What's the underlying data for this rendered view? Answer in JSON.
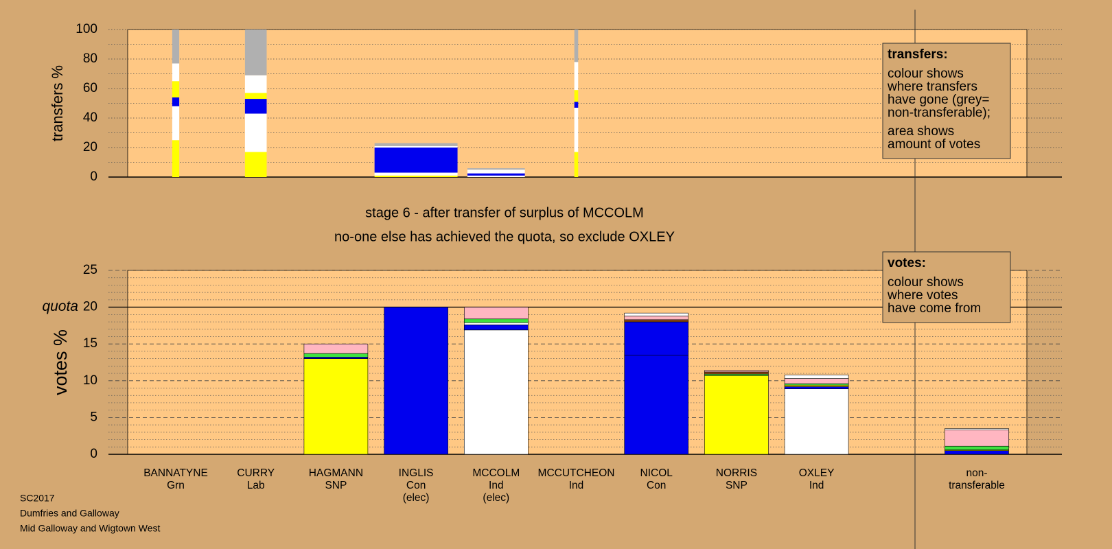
{
  "chart_data": [
    {
      "type": "bar",
      "stacked": true,
      "ylabel": "transfers %",
      "ylim": [
        0,
        100
      ],
      "yticks": [
        0,
        20,
        40,
        60,
        80,
        100
      ],
      "minor_yticks": [
        10,
        30,
        50,
        70,
        90
      ],
      "widths": [
        0.11,
        0.34,
        0,
        1.3,
        0.9,
        0.06,
        0,
        0,
        0,
        0,
        0
      ],
      "series": [
        {
          "color": "#ffff00",
          "values": [
            25,
            17,
            0,
            1,
            0,
            17,
            0,
            0,
            0,
            0,
            0
          ]
        },
        {
          "color": "#ffffff",
          "values": [
            23,
            26,
            0,
            2,
            1,
            30,
            0,
            0,
            0,
            0,
            0
          ]
        },
        {
          "color": "#0000ee",
          "values": [
            6,
            10,
            0,
            17,
            1.5,
            4,
            0,
            0,
            0,
            0,
            0
          ]
        },
        {
          "color": "#ffff00",
          "values": [
            11,
            4,
            0,
            0,
            0,
            8,
            0,
            0,
            0,
            0,
            0
          ]
        },
        {
          "color": "#ffffff",
          "values": [
            12,
            12,
            0,
            1,
            2.5,
            19,
            0,
            0,
            0,
            0,
            0
          ]
        },
        {
          "color": "#b0b0b0",
          "values": [
            23,
            31,
            0,
            2,
            1,
            22,
            0,
            0,
            0,
            0,
            0
          ]
        }
      ]
    },
    {
      "type": "bar",
      "stacked": true,
      "ylabel": "votes %",
      "ylim": [
        0,
        25
      ],
      "yticks": [
        0,
        5,
        10,
        15,
        20,
        25
      ],
      "minor_yticks": [
        1,
        2,
        3,
        4,
        6,
        7,
        8,
        9,
        11,
        12,
        13,
        14,
        16,
        17,
        18,
        19,
        21,
        22,
        23,
        24
      ],
      "quota": {
        "value": 20,
        "label": "quota"
      },
      "categories": [
        [
          "BANNATYNE",
          "Grn"
        ],
        [
          "CURRY",
          "Lab"
        ],
        [
          "HAGMANN",
          "SNP"
        ],
        [
          "INGLIS",
          "Con",
          "(elec)"
        ],
        [
          "MCCOLM",
          "Ind",
          "(elec)"
        ],
        [
          "MCCUTCHEON",
          "Ind"
        ],
        [
          "NICOL",
          "Con"
        ],
        [
          "NORRIS",
          "SNP"
        ],
        [
          "OXLEY",
          "Ind"
        ],
        null,
        [
          "non-",
          "transferable"
        ]
      ],
      "series": [
        {
          "color": "#ffff00",
          "values": [
            0,
            0,
            13,
            0,
            0,
            0,
            0,
            10.7,
            0,
            0,
            0
          ]
        },
        {
          "color": "#ffffff",
          "values": [
            0,
            0,
            0,
            0,
            16.9,
            0,
            0,
            0,
            8.9,
            0,
            0
          ]
        },
        {
          "color": "#0000ee",
          "values": [
            0,
            0,
            0.2,
            20,
            0.7,
            0,
            13.5,
            0,
            0.3,
            0,
            0.5
          ]
        },
        {
          "color": "#0000ee",
          "values": [
            0,
            0,
            0,
            0,
            0,
            0,
            4.5,
            0,
            0,
            0,
            0
          ]
        },
        {
          "color": "#ffffff",
          "values": [
            0,
            0,
            0,
            0,
            0.3,
            0,
            0,
            0,
            0,
            0,
            0
          ]
        },
        {
          "color": "#ffff00",
          "values": [
            0,
            0,
            0,
            0,
            0,
            0,
            0,
            0,
            0.2,
            0,
            0.1
          ]
        },
        {
          "color": "#40e040",
          "values": [
            0,
            0,
            0.5,
            0,
            0.5,
            0,
            0,
            0.2,
            0.2,
            0,
            0.5
          ]
        },
        {
          "color": "#8b4513",
          "values": [
            0,
            0,
            0,
            0,
            0,
            0,
            0.3,
            0.3,
            0,
            0,
            0
          ]
        },
        {
          "color": "#ffb6c1",
          "values": [
            0,
            0,
            1.3,
            0,
            1.6,
            0,
            0.5,
            0.2,
            0.7,
            0,
            2.2
          ]
        },
        {
          "color": "#ffffff",
          "values": [
            0,
            0,
            0,
            0,
            0,
            0,
            0.4,
            0,
            0.5,
            0,
            0.2
          ]
        }
      ]
    }
  ],
  "stage_text": [
    "stage 6 - after transfer of surplus of MCCOLM",
    "no-one else has achieved the quota, so exclude OXLEY"
  ],
  "legends": {
    "transfers": {
      "title": "transfers:",
      "lines": [
        "colour shows",
        "where transfers",
        "have gone (grey=",
        "non-transferable);",
        "area shows",
        "amount of votes"
      ]
    },
    "votes": {
      "title": "votes:",
      "lines": [
        "colour shows",
        "where votes",
        "have come from"
      ]
    }
  },
  "footer": [
    "SC2017",
    "Dumfries and Galloway",
    "Mid Galloway and Wigtown West"
  ]
}
